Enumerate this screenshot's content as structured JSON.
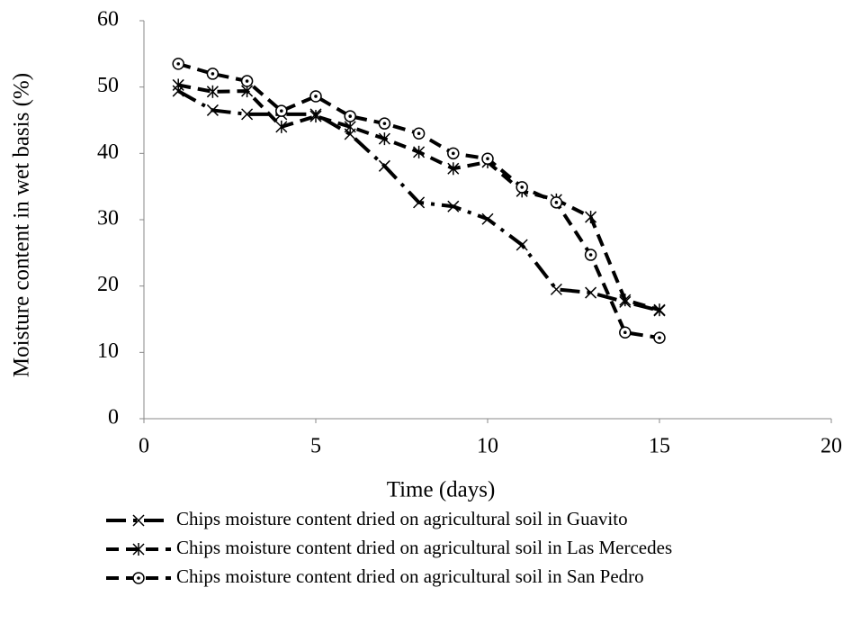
{
  "chart_data": {
    "type": "line",
    "x_label": "Time (days)",
    "y_label": "Moisture content in wet basis  (%)",
    "x": [
      1,
      2,
      3,
      4,
      5,
      6,
      7,
      8,
      9,
      10,
      11,
      12,
      13,
      14,
      15
    ],
    "series": [
      {
        "name": "Chips moisture content dried on agricultural soil in Guavito",
        "color": "#000000",
        "marker": "x",
        "dash": "long-dash-dot",
        "values": [
          49.4,
          46.5,
          45.9,
          45.9,
          45.9,
          42.9,
          38.1,
          32.6,
          32.0,
          30.1,
          26.2,
          19.5,
          19.0,
          17.6,
          16.3
        ]
      },
      {
        "name": "Chips moisture content dried on agricultural soil in Las Mercedes",
        "color": "#000000",
        "marker": "asterisk",
        "dash": "dash",
        "values": [
          50.3,
          49.3,
          49.4,
          44.0,
          45.6,
          44.0,
          42.2,
          40.2,
          37.7,
          38.7,
          34.3,
          33.0,
          30.4,
          17.9,
          16.4
        ]
      },
      {
        "name": "Chips moisture content dried on agricultural soil in San Pedro",
        "color": "#000000",
        "marker": "circle",
        "dash": "dash",
        "values": [
          53.5,
          52.0,
          50.9,
          46.4,
          48.6,
          45.6,
          44.5,
          43.0,
          40.0,
          39.2,
          34.9,
          32.6,
          24.7,
          13.0,
          12.2
        ]
      }
    ],
    "xlim": [
      0,
      20
    ],
    "xticks": [
      0,
      5,
      10,
      15,
      20
    ],
    "ylim": [
      0,
      60
    ],
    "yticks": [
      0,
      10,
      20,
      30,
      40,
      50,
      60
    ],
    "grid": false
  }
}
